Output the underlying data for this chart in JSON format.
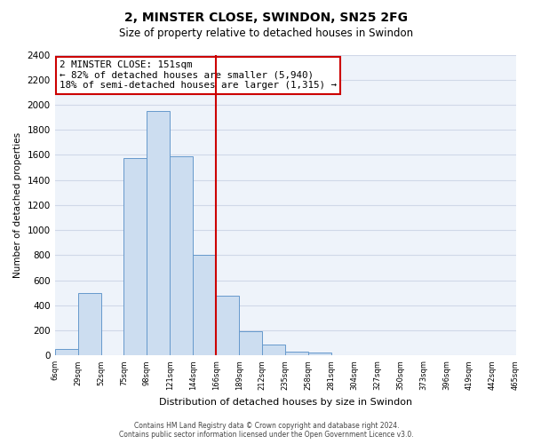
{
  "title": "2, MINSTER CLOSE, SWINDON, SN25 2FG",
  "subtitle": "Size of property relative to detached houses in Swindon",
  "xlabel": "Distribution of detached houses by size in Swindon",
  "ylabel": "Number of detached properties",
  "bin_labels": [
    "6sqm",
    "29sqm",
    "52sqm",
    "75sqm",
    "98sqm",
    "121sqm",
    "144sqm",
    "166sqm",
    "189sqm",
    "212sqm",
    "235sqm",
    "258sqm",
    "281sqm",
    "304sqm",
    "327sqm",
    "350sqm",
    "373sqm",
    "396sqm",
    "419sqm",
    "442sqm",
    "465sqm"
  ],
  "bar_values": [
    55,
    500,
    0,
    1575,
    1950,
    1590,
    800,
    480,
    190,
    90,
    30,
    20,
    0,
    0,
    0,
    0,
    0,
    0,
    0,
    0
  ],
  "bar_color": "#ccddf0",
  "bar_edge_color": "#6699cc",
  "highlight_line_bin": 7,
  "highlight_line_color": "#cc0000",
  "annotation_title": "2 MINSTER CLOSE: 151sqm",
  "annotation_line1": "← 82% of detached houses are smaller (5,940)",
  "annotation_line2": "18% of semi-detached houses are larger (1,315) →",
  "annotation_box_color": "#ffffff",
  "annotation_box_edge": "#cc0000",
  "ylim": [
    0,
    2400
  ],
  "yticks": [
    0,
    200,
    400,
    600,
    800,
    1000,
    1200,
    1400,
    1600,
    1800,
    2000,
    2200,
    2400
  ],
  "grid_color": "#d0d8e8",
  "footer_line1": "Contains HM Land Registry data © Crown copyright and database right 2024.",
  "footer_line2": "Contains public sector information licensed under the Open Government Licence v3.0.",
  "bg_color": "#ffffff",
  "plot_bg_color": "#eef3fa"
}
